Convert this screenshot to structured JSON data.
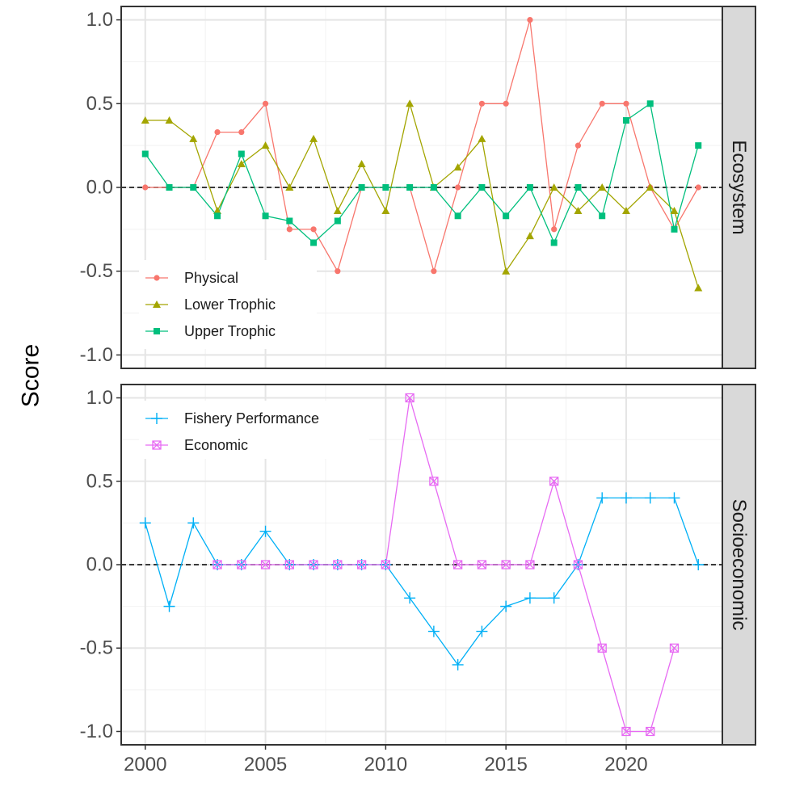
{
  "chart_data": [
    {
      "type": "line",
      "facet": "Ecosystem",
      "ylabel": "Score",
      "xlim": [
        1999,
        2024
      ],
      "ylim": [
        -1.08,
        1.08
      ],
      "x_ticks": [
        2000,
        2005,
        2010,
        2015,
        2020
      ],
      "x_tick_labels": [
        "2000",
        "2005",
        "2010",
        "2015",
        "2020"
      ],
      "y_ticks": [
        -1,
        -0.5,
        0,
        0.5,
        1
      ],
      "y_tick_labels": [
        "-1.0",
        "-0.5",
        "0.0",
        "0.5",
        "1.0"
      ],
      "reference_line": 0,
      "grid": true,
      "legend_position": "bottom-left",
      "series": [
        {
          "name": "Physical",
          "color": "#F8766D",
          "marker": "circle",
          "x": [
            2000,
            2001,
            2002,
            2003,
            2004,
            2005,
            2006,
            2007,
            2008,
            2009,
            2010,
            2011,
            2012,
            2013,
            2014,
            2015,
            2016,
            2017,
            2018,
            2019,
            2020,
            2021,
            2022,
            2023
          ],
          "y": [
            0,
            0,
            0,
            0.33,
            0.33,
            0.5,
            -0.25,
            -0.25,
            -0.5,
            0,
            0,
            0,
            -0.5,
            0,
            0.5,
            0.5,
            1.0,
            -0.25,
            0.25,
            0.5,
            0.5,
            0,
            -0.25,
            0
          ]
        },
        {
          "name": "Lower Trophic",
          "color": "#A3A500",
          "marker": "triangle",
          "x": [
            2000,
            2001,
            2002,
            2003,
            2004,
            2005,
            2006,
            2007,
            2008,
            2009,
            2010,
            2011,
            2012,
            2013,
            2014,
            2015,
            2016,
            2017,
            2018,
            2019,
            2020,
            2021,
            2022,
            2023
          ],
          "y": [
            0.4,
            0.4,
            0.29,
            -0.14,
            0.14,
            0.25,
            0,
            0.29,
            -0.14,
            0.14,
            -0.14,
            0.5,
            0,
            0.12,
            0.29,
            -0.5,
            -0.29,
            0,
            -0.14,
            0,
            -0.14,
            0,
            -0.14,
            -0.6
          ]
        },
        {
          "name": "Upper Trophic",
          "color": "#00BF7D",
          "marker": "square",
          "x": [
            2000,
            2001,
            2002,
            2003,
            2004,
            2005,
            2006,
            2007,
            2008,
            2009,
            2010,
            2011,
            2012,
            2013,
            2014,
            2015,
            2016,
            2017,
            2018,
            2019,
            2020,
            2021,
            2022,
            2023
          ],
          "y": [
            0.2,
            0,
            0,
            -0.17,
            0.2,
            -0.17,
            -0.2,
            -0.33,
            -0.2,
            0,
            0,
            0,
            0,
            -0.17,
            0,
            -0.17,
            0,
            -0.33,
            0,
            -0.17,
            0.4,
            0.5,
            -0.25,
            0.25
          ]
        }
      ]
    },
    {
      "type": "line",
      "facet": "Socioeconomic",
      "ylabel": "Score",
      "xlim": [
        1999,
        2024
      ],
      "ylim": [
        -1.08,
        1.08
      ],
      "x_ticks": [
        2000,
        2005,
        2010,
        2015,
        2020
      ],
      "x_tick_labels": [
        "2000",
        "2005",
        "2010",
        "2015",
        "2020"
      ],
      "y_ticks": [
        -1,
        -0.5,
        0,
        0.5,
        1
      ],
      "y_tick_labels": [
        "-1.0",
        "-0.5",
        "0.0",
        "0.5",
        "1.0"
      ],
      "reference_line": 0,
      "grid": true,
      "legend_position": "top-left",
      "series": [
        {
          "name": "Fishery Performance",
          "color": "#00B0F6",
          "marker": "plus",
          "x": [
            2000,
            2001,
            2002,
            2003,
            2004,
            2005,
            2006,
            2007,
            2008,
            2009,
            2010,
            2011,
            2012,
            2013,
            2014,
            2015,
            2016,
            2017,
            2018,
            2019,
            2020,
            2021,
            2022,
            2023
          ],
          "y": [
            0.25,
            -0.25,
            0.25,
            0,
            0,
            0.2,
            0,
            0,
            0,
            0,
            0,
            -0.2,
            -0.4,
            -0.6,
            -0.4,
            -0.25,
            -0.2,
            -0.2,
            0,
            0.4,
            0.4,
            0.4,
            0.4,
            0
          ]
        },
        {
          "name": "Economic",
          "color": "#E76BF3",
          "marker": "boxed-x",
          "x": [
            2003,
            2004,
            2005,
            2006,
            2007,
            2008,
            2009,
            2010,
            2011,
            2012,
            2013,
            2014,
            2015,
            2016,
            2017,
            2018,
            2019,
            2020,
            2021,
            2022
          ],
          "y": [
            0,
            0,
            0,
            0,
            0,
            0,
            0,
            0,
            1.0,
            0.5,
            0,
            0,
            0,
            0,
            0.5,
            0,
            -0.5,
            -1.0,
            -1.0,
            -0.5
          ]
        }
      ]
    }
  ]
}
